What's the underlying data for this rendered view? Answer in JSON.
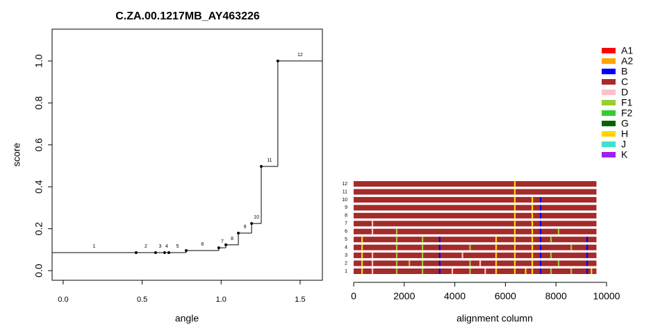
{
  "chart_data": [
    {
      "type": "step",
      "title": "C.ZA.00.1217MB_AY463226",
      "xlabel": "angle",
      "ylabel": "score",
      "xlim": [
        -0.07,
        1.641
      ],
      "ylim": [
        -0.046,
        1.152
      ],
      "xticks": [
        {
          "value": 0,
          "label": "0.0"
        },
        {
          "value": 0.5,
          "label": "0.5"
        },
        {
          "value": 1,
          "label": "1.0"
        },
        {
          "value": 1.5,
          "label": "1.5"
        }
      ],
      "yticks": [
        {
          "value": 0,
          "label": "0.0"
        },
        {
          "value": 0.2,
          "label": "0.2"
        },
        {
          "value": 0.4,
          "label": "0.4"
        },
        {
          "value": 0.6,
          "label": "0.6"
        },
        {
          "value": 0.8,
          "label": "0.8"
        },
        {
          "value": 1,
          "label": "1.0"
        }
      ],
      "labels": [
        "1",
        "2",
        "3",
        "4",
        "5",
        "6",
        "7",
        "8",
        "9",
        "10",
        "11",
        "12"
      ],
      "breaks": [
        0.462,
        0.585,
        0.642,
        0.669,
        0.779,
        0.985,
        1.03,
        1.109,
        1.193,
        1.254,
        1.359
      ],
      "levels": [
        0.086,
        0.086,
        0.086,
        0.086,
        0.086,
        0.096,
        0.109,
        0.123,
        0.179,
        0.225,
        0.497,
        1.0
      ],
      "color": "#000000"
    },
    {
      "type": "alignment",
      "xlabel": "alignment column",
      "xlim": [
        0,
        10000
      ],
      "xticks": [
        0,
        2000,
        4000,
        6000,
        8000,
        10000
      ],
      "base": "C",
      "rows": [
        {
          "label": "1",
          "length": 9600,
          "stripes": [
            {
              "x": 330,
              "type": "H"
            },
            {
              "x": 740,
              "type": "D"
            },
            {
              "x": 1700,
              "type": "F1"
            },
            {
              "x": 2720,
              "type": "F1"
            },
            {
              "x": 3400,
              "type": "B"
            },
            {
              "x": 3900,
              "type": "D"
            },
            {
              "x": 4050,
              "type": "A1"
            },
            {
              "x": 4600,
              "type": "F1"
            },
            {
              "x": 5200,
              "type": "D"
            },
            {
              "x": 5630,
              "type": "H"
            },
            {
              "x": 6370,
              "type": "H"
            },
            {
              "x": 6800,
              "type": "H"
            },
            {
              "x": 7060,
              "type": "H"
            },
            {
              "x": 7390,
              "type": "B"
            },
            {
              "x": 7800,
              "type": "F1"
            },
            {
              "x": 8600,
              "type": "F1"
            },
            {
              "x": 9230,
              "type": "B"
            },
            {
              "x": 9400,
              "type": "H"
            }
          ]
        },
        {
          "label": "2",
          "length": 9600,
          "stripes": [
            {
              "x": 330,
              "type": "H"
            },
            {
              "x": 740,
              "type": "D"
            },
            {
              "x": 1700,
              "type": "F1"
            },
            {
              "x": 2200,
              "type": "F1"
            },
            {
              "x": 2720,
              "type": "F1"
            },
            {
              "x": 3400,
              "type": "B"
            },
            {
              "x": 4600,
              "type": "F1"
            },
            {
              "x": 5000,
              "type": "D"
            },
            {
              "x": 5630,
              "type": "H"
            },
            {
              "x": 6370,
              "type": "H"
            },
            {
              "x": 7060,
              "type": "H"
            },
            {
              "x": 7390,
              "type": "B"
            },
            {
              "x": 8100,
              "type": "F1"
            },
            {
              "x": 9230,
              "type": "B"
            }
          ]
        },
        {
          "label": "3",
          "length": 9600,
          "stripes": [
            {
              "x": 330,
              "type": "H"
            },
            {
              "x": 740,
              "type": "D"
            },
            {
              "x": 1700,
              "type": "F1"
            },
            {
              "x": 2720,
              "type": "F1"
            },
            {
              "x": 3400,
              "type": "B"
            },
            {
              "x": 4300,
              "type": "D"
            },
            {
              "x": 5630,
              "type": "H"
            },
            {
              "x": 6370,
              "type": "H"
            },
            {
              "x": 7060,
              "type": "H"
            },
            {
              "x": 7390,
              "type": "B"
            },
            {
              "x": 7800,
              "type": "F1"
            },
            {
              "x": 9230,
              "type": "B"
            }
          ]
        },
        {
          "label": "4",
          "length": 9600,
          "stripes": [
            {
              "x": 330,
              "type": "H"
            },
            {
              "x": 1700,
              "type": "F1"
            },
            {
              "x": 2720,
              "type": "F1"
            },
            {
              "x": 3400,
              "type": "B"
            },
            {
              "x": 4600,
              "type": "F1"
            },
            {
              "x": 5630,
              "type": "H"
            },
            {
              "x": 6370,
              "type": "H"
            },
            {
              "x": 7060,
              "type": "H"
            },
            {
              "x": 7390,
              "type": "B"
            },
            {
              "x": 8600,
              "type": "F1"
            },
            {
              "x": 9230,
              "type": "B"
            }
          ]
        },
        {
          "label": "5",
          "length": 9600,
          "stripes": [
            {
              "x": 330,
              "type": "H"
            },
            {
              "x": 1700,
              "type": "F1"
            },
            {
              "x": 2720,
              "type": "F1"
            },
            {
              "x": 3400,
              "type": "B"
            },
            {
              "x": 5630,
              "type": "H"
            },
            {
              "x": 6370,
              "type": "H"
            },
            {
              "x": 7060,
              "type": "H"
            },
            {
              "x": 7390,
              "type": "B"
            },
            {
              "x": 7800,
              "type": "F1"
            },
            {
              "x": 9230,
              "type": "B"
            }
          ]
        },
        {
          "label": "6",
          "length": 9600,
          "stripes": [
            {
              "x": 740,
              "type": "D"
            },
            {
              "x": 1700,
              "type": "F1"
            },
            {
              "x": 6370,
              "type": "H"
            },
            {
              "x": 7060,
              "type": "H"
            },
            {
              "x": 7390,
              "type": "B"
            },
            {
              "x": 8100,
              "type": "F1"
            }
          ]
        },
        {
          "label": "7",
          "length": 9600,
          "stripes": [
            {
              "x": 740,
              "type": "D"
            },
            {
              "x": 6370,
              "type": "H"
            },
            {
              "x": 7060,
              "type": "H"
            },
            {
              "x": 7390,
              "type": "B"
            }
          ]
        },
        {
          "label": "8",
          "length": 9600,
          "stripes": [
            {
              "x": 6370,
              "type": "H"
            },
            {
              "x": 7060,
              "type": "H"
            },
            {
              "x": 7390,
              "type": "B"
            }
          ]
        },
        {
          "label": "9",
          "length": 9600,
          "stripes": [
            {
              "x": 6370,
              "type": "H"
            },
            {
              "x": 7060,
              "type": "H"
            },
            {
              "x": 7390,
              "type": "B"
            }
          ]
        },
        {
          "label": "10",
          "length": 9600,
          "stripes": [
            {
              "x": 6370,
              "type": "H"
            },
            {
              "x": 7060,
              "type": "H"
            },
            {
              "x": 7390,
              "type": "B"
            }
          ]
        },
        {
          "label": "11",
          "length": 9600,
          "stripes": [
            {
              "x": 6370,
              "type": "H"
            }
          ]
        },
        {
          "label": "12",
          "length": 9600,
          "stripes": [
            {
              "x": 6370,
              "type": "H"
            }
          ]
        }
      ],
      "legend": [
        {
          "name": "A1",
          "color": "#ff0000"
        },
        {
          "name": "A2",
          "color": "#ffa500"
        },
        {
          "name": "B",
          "color": "#0000ff"
        },
        {
          "name": "C",
          "color": "#a52a2a"
        },
        {
          "name": "D",
          "color": "#ffc0cb"
        },
        {
          "name": "F1",
          "color": "#9acd32"
        },
        {
          "name": "F2",
          "color": "#32cd32"
        },
        {
          "name": "G",
          "color": "#006400"
        },
        {
          "name": "H",
          "color": "#ffd700"
        },
        {
          "name": "J",
          "color": "#40e0d0"
        },
        {
          "name": "K",
          "color": "#a020f0"
        }
      ]
    }
  ]
}
